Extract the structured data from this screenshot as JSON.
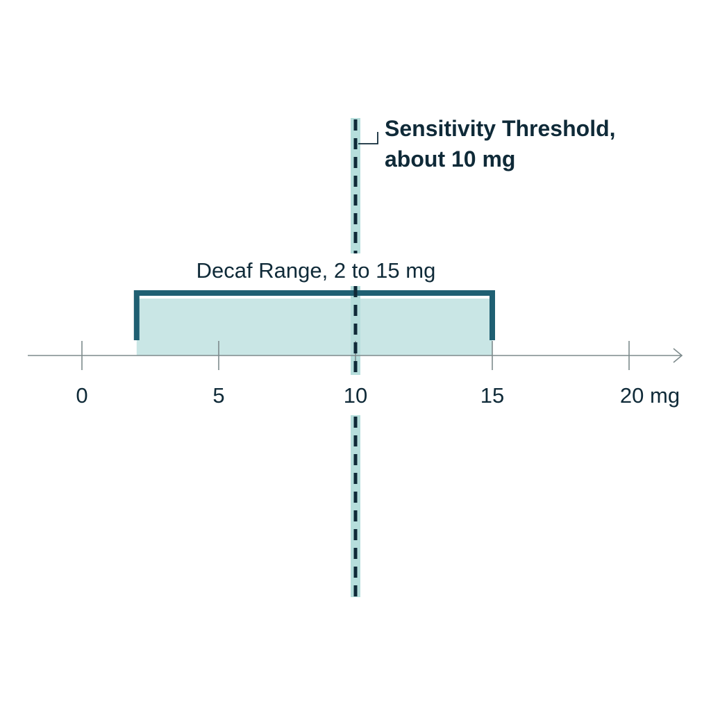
{
  "chart_data": {
    "type": "number-line",
    "unit": "mg",
    "axis_range": [
      0,
      20
    ],
    "ticks": [
      {
        "value": 0,
        "label": "0"
      },
      {
        "value": 5,
        "label": "5"
      },
      {
        "value": 10,
        "label": "10"
      },
      {
        "value": 15,
        "label": "15"
      },
      {
        "value": 20,
        "label": "20 mg"
      }
    ],
    "range": {
      "label": "Decaf Range, 2 to 15 mg",
      "start": 2,
      "end": 15
    },
    "threshold": {
      "label_line1": "Sensitivity Threshold,",
      "label_line2": "about 10 mg",
      "value": 10
    }
  },
  "colors": {
    "axis": "#7d8a8c",
    "range_fill": "#c9e6e5",
    "bracket": "#1f5f72",
    "threshold_band": "#b6dedc",
    "threshold_dash": "#0f2a38",
    "text": "#0f2a38"
  }
}
